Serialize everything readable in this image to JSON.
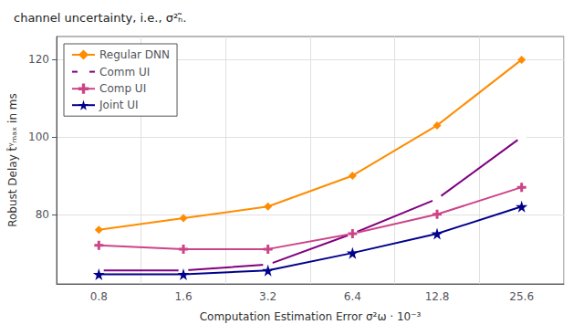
{
  "chart_data": {
    "type": "line",
    "title": "channel uncertainty, i.e., σ²ₕ̃.",
    "x_label": "Computation Estimation Error σ²ω · 10⁻³",
    "y_label": "Robust Delay t̂ᵞₘₐₓ in ms",
    "categories": [
      "0.8",
      "1.6",
      "3.2",
      "6.4",
      "12.8",
      "25.6"
    ],
    "series": [
      {
        "name": "Regular DNN",
        "color": "#FF8C00",
        "marker": "diamond",
        "values": [
          76,
          79,
          82,
          90,
          103,
          120
        ]
      },
      {
        "name": "Comm UI",
        "color": "#800080",
        "marker": "hollow_circle",
        "values": [
          65.5,
          65.5,
          67,
          75,
          84,
          100
        ]
      },
      {
        "name": "Comp UI",
        "color": "#CC4488",
        "marker": "plus",
        "values": [
          72,
          71,
          71,
          75,
          80,
          87
        ]
      },
      {
        "name": "Joint UI",
        "color": "#00008B",
        "marker": "star",
        "values": [
          64.5,
          64.5,
          65.5,
          70,
          75,
          82
        ]
      }
    ],
    "ylim": [
      62,
      126
    ],
    "yticks": [
      80,
      100,
      120
    ],
    "grid": true,
    "legend": "upper left"
  }
}
